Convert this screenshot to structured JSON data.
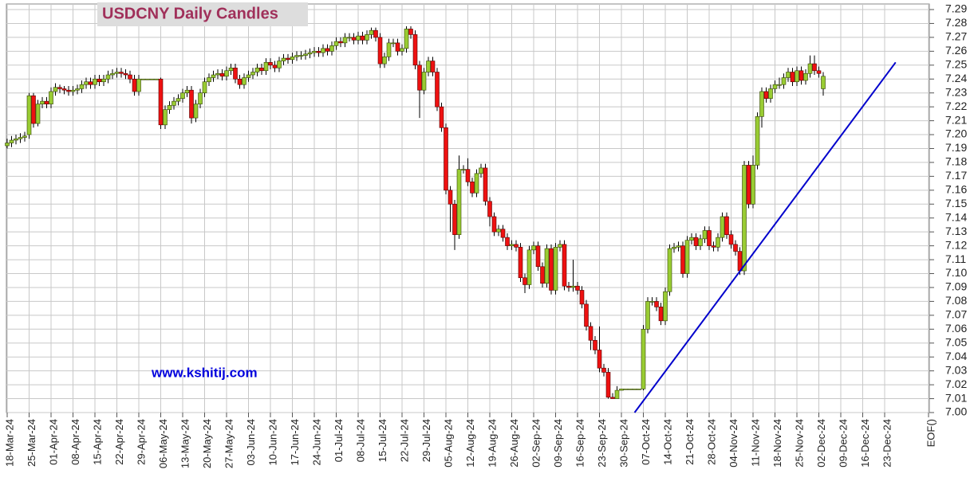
{
  "chart_data": {
    "type": "candlestick",
    "title": "USDCNY Daily Candles",
    "annotations": [
      "www.kshitij.com"
    ],
    "up_color": "#99cc33",
    "down_color": "#ee1111",
    "grid": true,
    "open": [
      7.192,
      7.194,
      7.196,
      7.197,
      7.198,
      7.2,
      7.228,
      7.208,
      7.222,
      7.224,
      7.222,
      7.231,
      7.234,
      7.233,
      7.232,
      7.231,
      7.232,
      7.233,
      7.236,
      7.238,
      7.236,
      7.24,
      7.238,
      7.24,
      7.243,
      7.244,
      7.245,
      7.244,
      7.243,
      7.24,
      7.231,
      7.24,
      7.24,
      7.24,
      7.24,
      7.24,
      7.207,
      7.218,
      7.221,
      7.224,
      7.226,
      7.23,
      7.232,
      7.212,
      7.222,
      7.23,
      7.238,
      7.241,
      7.243,
      7.244,
      7.242,
      7.246,
      7.248,
      7.24,
      7.236,
      7.241,
      7.243,
      7.245,
      7.248,
      7.246,
      7.252,
      7.25,
      7.248,
      7.253,
      7.255,
      7.254,
      7.256,
      7.257,
      7.257,
      7.258,
      7.259,
      7.26,
      7.259,
      7.262,
      7.26,
      7.264,
      7.267,
      7.266,
      7.27,
      7.27,
      7.268,
      7.271,
      7.268,
      7.272,
      7.275,
      7.27,
      7.251,
      7.256,
      7.266,
      7.266,
      7.26,
      7.262,
      7.276,
      7.272,
      7.25,
      7.232,
      7.245,
      7.253,
      7.245,
      7.22,
      7.205,
      7.16,
      7.15,
      7.128,
      7.175,
      7.175,
      7.166,
      7.158,
      7.172,
      7.176,
      7.152,
      7.141,
      7.13,
      7.132,
      7.126,
      7.12,
      7.121,
      7.119,
      7.097,
      7.092,
      7.117,
      7.12,
      7.105,
      7.093,
      7.118,
      7.088,
      7.119,
      7.121,
      7.091,
      7.09,
      7.091,
      7.088,
      7.078,
      7.062,
      7.052,
      7.045,
      7.032,
      7.029,
      7.011,
      7.01,
      7.016,
      7.017,
      7.017,
      7.017,
      7.017,
      7.017,
      7.06,
      7.08,
      7.08,
      7.076,
      7.066,
      7.087,
      7.118,
      7.119,
      7.12,
      7.1,
      7.124,
      7.126,
      7.12,
      7.125,
      7.131,
      7.12,
      7.119,
      7.126,
      7.141,
      7.128,
      7.121,
      7.116,
      7.102,
      7.178,
      7.15,
      7.178,
      7.213,
      7.231,
      7.226,
      7.233,
      7.236,
      7.236,
      7.241,
      7.245,
      7.238,
      7.246,
      7.239,
      7.244,
      7.251,
      7.246,
      7.233
    ],
    "high": [
      7.197,
      7.199,
      7.2,
      7.201,
      7.202,
      7.23,
      7.23,
      7.225,
      7.227,
      7.227,
      7.234,
      7.237,
      7.236,
      7.235,
      7.235,
      7.235,
      7.236,
      7.239,
      7.241,
      7.241,
      7.243,
      7.243,
      7.243,
      7.246,
      7.247,
      7.248,
      7.248,
      7.247,
      7.246,
      7.243,
      7.243,
      7.24,
      7.24,
      7.24,
      7.24,
      7.241,
      7.221,
      7.224,
      7.227,
      7.229,
      7.233,
      7.235,
      7.235,
      7.225,
      7.233,
      7.241,
      7.244,
      7.246,
      7.247,
      7.247,
      7.249,
      7.251,
      7.251,
      7.243,
      7.244,
      7.246,
      7.248,
      7.251,
      7.251,
      7.255,
      7.255,
      7.253,
      7.256,
      7.258,
      7.258,
      7.259,
      7.26,
      7.26,
      7.261,
      7.262,
      7.263,
      7.263,
      7.265,
      7.265,
      7.267,
      7.27,
      7.27,
      7.273,
      7.273,
      7.273,
      7.274,
      7.274,
      7.275,
      7.277,
      7.277,
      7.273,
      7.259,
      7.269,
      7.269,
      7.269,
      7.265,
      7.278,
      7.278,
      7.275,
      7.253,
      7.248,
      7.256,
      7.256,
      7.248,
      7.223,
      7.208,
      7.163,
      7.153,
      7.185,
      7.178,
      7.183,
      7.169,
      7.175,
      7.179,
      7.179,
      7.155,
      7.144,
      7.135,
      7.135,
      7.129,
      7.124,
      7.124,
      7.122,
      7.1,
      7.12,
      7.123,
      7.123,
      7.108,
      7.121,
      7.121,
      7.122,
      7.124,
      7.124,
      7.094,
      7.11,
      7.094,
      7.091,
      7.081,
      7.065,
      7.055,
      7.062,
      7.035,
      7.032,
      7.014,
      7.019,
      7.017,
      7.017,
      7.017,
      7.017,
      7.017,
      7.063,
      7.083,
      7.083,
      7.083,
      7.079,
      7.09,
      7.121,
      7.122,
      7.123,
      7.123,
      7.127,
      7.129,
      7.129,
      7.128,
      7.134,
      7.134,
      7.123,
      7.129,
      7.144,
      7.144,
      7.131,
      7.124,
      7.119,
      7.181,
      7.181,
      7.185,
      7.216,
      7.234,
      7.234,
      7.236,
      7.239,
      7.241,
      7.244,
      7.248,
      7.248,
      7.249,
      7.249,
      7.247,
      7.257,
      7.257,
      7.249,
      7.245
    ],
    "low": [
      7.19,
      7.191,
      7.193,
      7.194,
      7.195,
      7.197,
      7.205,
      7.206,
      7.219,
      7.219,
      7.219,
      7.228,
      7.23,
      7.229,
      7.228,
      7.228,
      7.229,
      7.23,
      7.233,
      7.233,
      7.233,
      7.235,
      7.235,
      7.237,
      7.24,
      7.241,
      7.241,
      7.24,
      7.237,
      7.228,
      7.228,
      7.24,
      7.24,
      7.24,
      7.24,
      7.204,
      7.204,
      7.215,
      7.218,
      7.221,
      7.223,
      7.227,
      7.208,
      7.209,
      7.219,
      7.227,
      7.235,
      7.238,
      7.24,
      7.239,
      7.239,
      7.243,
      7.237,
      7.233,
      7.233,
      7.238,
      7.24,
      7.242,
      7.243,
      7.243,
      7.247,
      7.245,
      7.245,
      7.25,
      7.251,
      7.251,
      7.253,
      7.254,
      7.254,
      7.255,
      7.256,
      7.256,
      7.256,
      7.257,
      7.257,
      7.261,
      7.263,
      7.263,
      7.267,
      7.265,
      7.265,
      7.265,
      7.265,
      7.269,
      7.267,
      7.248,
      7.248,
      7.253,
      7.263,
      7.257,
      7.257,
      7.259,
      7.269,
      7.247,
      7.212,
      7.229,
      7.242,
      7.242,
      7.217,
      7.202,
      7.157,
      7.13,
      7.117,
      7.125,
      7.172,
      7.163,
      7.155,
      7.155,
      7.169,
      7.149,
      7.134,
      7.127,
      7.127,
      7.123,
      7.117,
      7.117,
      7.116,
      7.094,
      7.086,
      7.089,
      7.114,
      7.102,
      7.09,
      7.09,
      7.085,
      7.085,
      7.116,
      7.088,
      7.087,
      7.087,
      7.085,
      7.075,
      7.059,
      7.045,
      7.042,
      7.029,
      7.026,
      7.01,
      7.01,
      7.01,
      7.016,
      7.017,
      7.017,
      7.017,
      7.017,
      7.016,
      7.057,
      7.077,
      7.073,
      7.063,
      7.063,
      7.084,
      7.115,
      7.116,
      7.097,
      7.097,
      7.121,
      7.117,
      7.117,
      7.122,
      7.117,
      7.116,
      7.116,
      7.123,
      7.125,
      7.118,
      7.113,
      7.099,
      7.099,
      7.147,
      7.147,
      7.175,
      7.205,
      7.223,
      7.223,
      7.23,
      7.233,
      7.233,
      7.238,
      7.235,
      7.235,
      7.236,
      7.236,
      7.241,
      7.243,
      7.241,
      7.228
    ],
    "close": [
      7.194,
      7.196,
      7.197,
      7.198,
      7.199,
      7.228,
      7.208,
      7.222,
      7.224,
      7.222,
      7.231,
      7.234,
      7.233,
      7.232,
      7.231,
      7.232,
      7.233,
      7.236,
      7.238,
      7.236,
      7.24,
      7.238,
      7.24,
      7.243,
      7.244,
      7.245,
      7.244,
      7.243,
      7.24,
      7.231,
      7.24,
      7.24,
      7.24,
      7.24,
      7.24,
      7.207,
      7.218,
      7.221,
      7.224,
      7.226,
      7.23,
      7.232,
      7.212,
      7.222,
      7.23,
      7.238,
      7.241,
      7.243,
      7.244,
      7.242,
      7.246,
      7.248,
      7.24,
      7.236,
      7.241,
      7.243,
      7.245,
      7.248,
      7.246,
      7.252,
      7.25,
      7.248,
      7.253,
      7.255,
      7.254,
      7.256,
      7.257,
      7.257,
      7.258,
      7.259,
      7.26,
      7.259,
      7.262,
      7.26,
      7.264,
      7.267,
      7.266,
      7.27,
      7.27,
      7.268,
      7.271,
      7.268,
      7.272,
      7.275,
      7.27,
      7.251,
      7.256,
      7.266,
      7.266,
      7.26,
      7.262,
      7.276,
      7.272,
      7.25,
      7.232,
      7.245,
      7.253,
      7.245,
      7.22,
      7.205,
      7.16,
      7.15,
      7.128,
      7.175,
      7.175,
      7.166,
      7.158,
      7.172,
      7.176,
      7.152,
      7.141,
      7.13,
      7.132,
      7.126,
      7.12,
      7.121,
      7.119,
      7.097,
      7.092,
      7.117,
      7.12,
      7.105,
      7.093,
      7.118,
      7.088,
      7.119,
      7.121,
      7.091,
      7.09,
      7.091,
      7.088,
      7.078,
      7.062,
      7.052,
      7.045,
      7.032,
      7.029,
      7.011,
      7.01,
      7.016,
      7.017,
      7.017,
      7.017,
      7.017,
      7.017,
      7.06,
      7.08,
      7.08,
      7.076,
      7.066,
      7.087,
      7.118,
      7.119,
      7.12,
      7.1,
      7.124,
      7.126,
      7.12,
      7.125,
      7.131,
      7.12,
      7.119,
      7.126,
      7.141,
      7.128,
      7.121,
      7.116,
      7.102,
      7.178,
      7.15,
      7.178,
      7.213,
      7.231,
      7.226,
      7.233,
      7.236,
      7.236,
      7.241,
      7.245,
      7.238,
      7.246,
      7.239,
      7.244,
      7.251,
      7.246,
      7.244,
      7.242
    ],
    "trendline": {
      "color": "#0000cc",
      "x": [
        143,
        202.5
      ],
      "y": [
        7.0,
        7.252
      ]
    },
    "xlim": [
      0,
      210
    ],
    "xticks": [
      {
        "value": 0,
        "label": "18-Mar-24"
      },
      {
        "value": 5,
        "label": "25-Mar-24"
      },
      {
        "value": 10,
        "label": "01-Apr-24"
      },
      {
        "value": 15,
        "label": "08-Apr-24"
      },
      {
        "value": 20,
        "label": "15-Apr-24"
      },
      {
        "value": 25,
        "label": "22-Apr-24"
      },
      {
        "value": 30,
        "label": "29-Apr-24"
      },
      {
        "value": 35,
        "label": "06-May-24"
      },
      {
        "value": 40,
        "label": "13-May-24"
      },
      {
        "value": 45,
        "label": "20-May-24"
      },
      {
        "value": 50,
        "label": "27-May-24"
      },
      {
        "value": 55,
        "label": "03-Jun-24"
      },
      {
        "value": 60,
        "label": "10-Jun-24"
      },
      {
        "value": 65,
        "label": "17-Jun-24"
      },
      {
        "value": 70,
        "label": "24-Jun-24"
      },
      {
        "value": 75,
        "label": "01-Jul-24"
      },
      {
        "value": 80,
        "label": "08-Jul-24"
      },
      {
        "value": 85,
        "label": "15-Jul-24"
      },
      {
        "value": 90,
        "label": "22-Jul-24"
      },
      {
        "value": 95,
        "label": "29-Jul-24"
      },
      {
        "value": 100,
        "label": "05-Aug-24"
      },
      {
        "value": 105,
        "label": "12-Aug-24"
      },
      {
        "value": 110,
        "label": "19-Aug-24"
      },
      {
        "value": 115,
        "label": "26-Aug-24"
      },
      {
        "value": 120,
        "label": "02-Sep-24"
      },
      {
        "value": 125,
        "label": "09-Sep-24"
      },
      {
        "value": 130,
        "label": "16-Sep-24"
      },
      {
        "value": 135,
        "label": "23-Sep-24"
      },
      {
        "value": 140,
        "label": "30-Sep-24"
      },
      {
        "value": 145,
        "label": "07-Oct-24"
      },
      {
        "value": 150,
        "label": "14-Oct-24"
      },
      {
        "value": 155,
        "label": "21-Oct-24"
      },
      {
        "value": 160,
        "label": "28-Oct-24"
      },
      {
        "value": 165,
        "label": "04-Nov-24"
      },
      {
        "value": 170,
        "label": "11-Nov-24"
      },
      {
        "value": 175,
        "label": "18-Nov-24"
      },
      {
        "value": 180,
        "label": "25-Nov-24"
      },
      {
        "value": 185,
        "label": "02-Dec-24"
      },
      {
        "value": 190,
        "label": "09-Dec-24"
      },
      {
        "value": 195,
        "label": "16-Dec-24"
      },
      {
        "value": 200,
        "label": "23-Dec-24"
      },
      {
        "value": 210,
        "label": "EOF()"
      }
    ],
    "ylim": [
      7.0,
      7.29
    ],
    "yticks": [
      {
        "value": 7.0,
        "label": "7.00"
      },
      7.01,
      7.02,
      7.03,
      7.04,
      7.05,
      7.06,
      7.07,
      7.08,
      7.09,
      {
        "value": 7.1,
        "label": "7.10"
      },
      7.11,
      7.12,
      7.13,
      7.14,
      7.15,
      7.16,
      7.17,
      7.18,
      7.19,
      {
        "value": 7.2,
        "label": "7.20"
      },
      7.21,
      7.22,
      7.23,
      7.24,
      7.25,
      7.26,
      7.27,
      7.28,
      7.29
    ]
  }
}
